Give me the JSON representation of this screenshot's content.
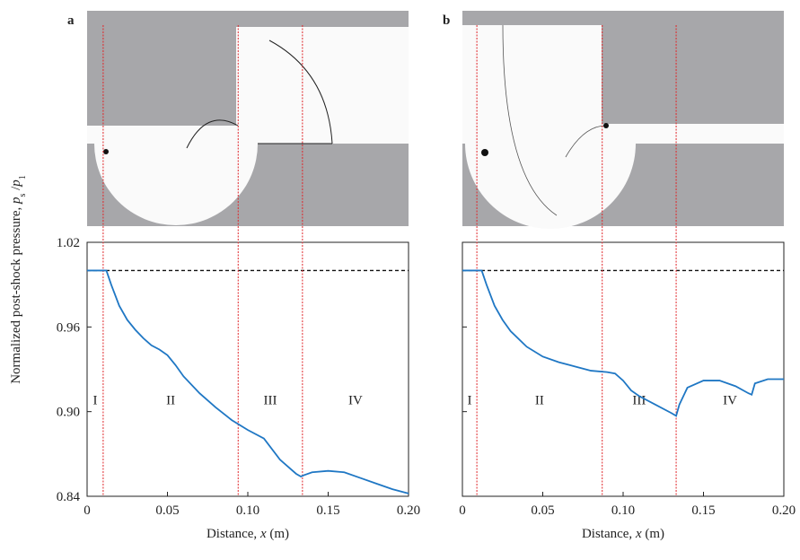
{
  "chart_data": [
    {
      "type": "line",
      "panel_label": "a",
      "ylabel": [
        "Normalized post-shock pressure, ",
        "p",
        "s",
        " /",
        "p",
        "1"
      ],
      "xlabel": [
        "Distance, ",
        "x",
        " (m)"
      ],
      "xlim": [
        0,
        0.2
      ],
      "ylim": [
        0.84,
        1.02
      ],
      "xticks": [
        0,
        0.05,
        {
          "value": 0.1,
          "label": "0.10"
        },
        0.15,
        {
          "value": 0.2,
          "label": "0.20"
        }
      ],
      "yticks": [
        1.02,
        0.96,
        {
          "value": 0.9,
          "label": "0.90"
        },
        0.84
      ],
      "reference_line": 1.0,
      "boundaries": [
        0.01,
        0.094,
        0.134
      ],
      "regions": [
        "I",
        "II",
        "III",
        "IV"
      ],
      "color": "#1f77c4",
      "x": [
        0,
        0.005,
        0.012,
        0.015,
        0.02,
        0.025,
        0.03,
        0.035,
        0.04,
        0.045,
        0.05,
        0.055,
        0.06,
        0.07,
        0.08,
        0.09,
        0.1,
        0.11,
        0.12,
        0.13,
        0.133,
        0.135,
        0.14,
        0.15,
        0.16,
        0.17,
        0.18,
        0.19,
        0.2
      ],
      "values": [
        1.0,
        1.0,
        1.0,
        0.99,
        0.975,
        0.965,
        0.958,
        0.952,
        0.947,
        0.944,
        0.94,
        0.933,
        0.925,
        0.913,
        0.903,
        0.894,
        0.887,
        0.881,
        0.866,
        0.856,
        0.854,
        0.855,
        0.857,
        0.858,
        0.857,
        0.853,
        0.849,
        0.845,
        0.842
      ]
    },
    {
      "type": "line",
      "panel_label": "b",
      "xlabel": [
        "Distance, ",
        "x",
        " (m)"
      ],
      "xlim": [
        0,
        0.2
      ],
      "ylim": [
        0.84,
        1.02
      ],
      "xticks": [
        0,
        0.05,
        {
          "value": 0.1,
          "label": "0.10"
        },
        0.15,
        {
          "value": 0.2,
          "label": "0.20"
        }
      ],
      "yticks": [
        1.02,
        0.96,
        0.9,
        0.84
      ],
      "reference_line": 1.0,
      "boundaries": [
        0.009,
        0.087,
        0.133
      ],
      "regions": [
        "I",
        "II",
        "III",
        "IV"
      ],
      "color": "#1f77c4",
      "x": [
        0,
        0.012,
        0.015,
        0.02,
        0.025,
        0.03,
        0.04,
        0.05,
        0.06,
        0.07,
        0.08,
        0.09,
        0.095,
        0.1,
        0.105,
        0.11,
        0.12,
        0.13,
        0.133,
        0.135,
        0.14,
        0.15,
        0.16,
        0.17,
        0.178,
        0.18,
        0.182,
        0.19,
        0.2
      ],
      "values": [
        1.0,
        1.0,
        0.99,
        0.975,
        0.965,
        0.957,
        0.946,
        0.939,
        0.935,
        0.932,
        0.929,
        0.928,
        0.927,
        0.922,
        0.915,
        0.911,
        0.905,
        0.899,
        0.897,
        0.905,
        0.917,
        0.922,
        0.922,
        0.918,
        0.913,
        0.912,
        0.92,
        0.923,
        0.923
      ]
    }
  ]
}
